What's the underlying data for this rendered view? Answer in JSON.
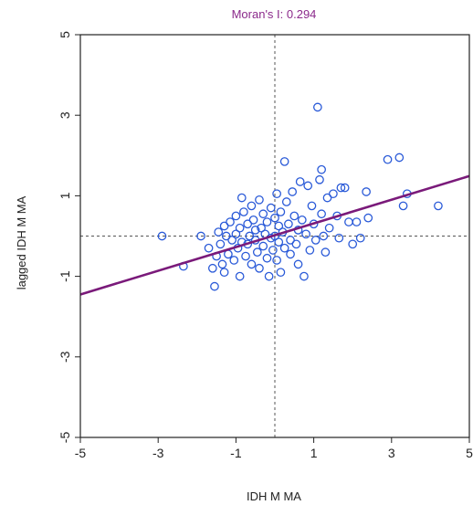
{
  "chart_data": {
    "type": "scatter",
    "title": "Moran's I: 0.294",
    "xlabel": "IDH M MA",
    "ylabel": "lagged IDH M MA",
    "xlim": [
      -5,
      5
    ],
    "ylim": [
      -5,
      5
    ],
    "xticks": [
      "-5",
      "-3",
      "-1",
      "1",
      "3",
      "5"
    ],
    "yticks": [
      "-5",
      "-3",
      "-1",
      "1",
      "3",
      "5"
    ],
    "grid": false,
    "mean_lines": {
      "x": 0,
      "y": 0
    },
    "regression_line": {
      "slope": 0.294,
      "intercept": 0.02
    },
    "colors": {
      "points": "#2a5ad8",
      "regression": "#7a1a7a",
      "title": "#8b2a8b",
      "mean_lines": "#555555"
    },
    "points": [
      [
        -2.9,
        0.0
      ],
      [
        -1.9,
        0.0
      ],
      [
        -1.7,
        -0.3
      ],
      [
        -1.6,
        -0.8
      ],
      [
        -1.55,
        -1.25
      ],
      [
        -1.5,
        -0.5
      ],
      [
        -1.45,
        0.1
      ],
      [
        -1.4,
        -0.2
      ],
      [
        -1.35,
        -0.7
      ],
      [
        -1.3,
        0.25
      ],
      [
        -1.3,
        -0.9
      ],
      [
        -1.25,
        0.0
      ],
      [
        -1.2,
        -0.45
      ],
      [
        -1.15,
        0.35
      ],
      [
        -1.1,
        -0.1
      ],
      [
        -1.05,
        -0.6
      ],
      [
        -1.0,
        0.5
      ],
      [
        -1.0,
        0.05
      ],
      [
        -0.95,
        -0.3
      ],
      [
        -0.9,
        -1.0
      ],
      [
        -0.9,
        0.2
      ],
      [
        -0.85,
        0.95
      ],
      [
        -0.85,
        -0.15
      ],
      [
        -0.8,
        0.6
      ],
      [
        -0.75,
        -0.5
      ],
      [
        -0.7,
        0.3
      ],
      [
        -0.7,
        -0.2
      ],
      [
        -0.65,
        0.0
      ],
      [
        -0.6,
        0.75
      ],
      [
        -0.6,
        -0.7
      ],
      [
        -0.55,
        0.4
      ],
      [
        -0.5,
        -0.1
      ],
      [
        -0.5,
        0.15
      ],
      [
        -0.45,
        -0.4
      ],
      [
        -0.4,
        0.9
      ],
      [
        -0.4,
        -0.8
      ],
      [
        -0.35,
        0.2
      ],
      [
        -0.3,
        0.55
      ],
      [
        -0.3,
        -0.25
      ],
      [
        -0.25,
        0.05
      ],
      [
        -0.2,
        -0.55
      ],
      [
        -0.2,
        0.35
      ],
      [
        -0.15,
        -1.0
      ],
      [
        -0.1,
        0.7
      ],
      [
        -0.1,
        -0.05
      ],
      [
        -0.05,
        -0.35
      ],
      [
        0.0,
        0.45
      ],
      [
        0.0,
        0.0
      ],
      [
        0.05,
        1.05
      ],
      [
        0.05,
        -0.6
      ],
      [
        0.1,
        0.25
      ],
      [
        0.1,
        -0.15
      ],
      [
        0.15,
        0.6
      ],
      [
        0.15,
        -0.9
      ],
      [
        0.2,
        0.1
      ],
      [
        0.25,
        1.85
      ],
      [
        0.25,
        -0.3
      ],
      [
        0.3,
        0.85
      ],
      [
        0.35,
        0.3
      ],
      [
        0.4,
        -0.1
      ],
      [
        0.4,
        -0.45
      ],
      [
        0.45,
        1.1
      ],
      [
        0.5,
        0.5
      ],
      [
        0.55,
        -0.2
      ],
      [
        0.6,
        0.15
      ],
      [
        0.6,
        -0.7
      ],
      [
        0.65,
        1.35
      ],
      [
        0.7,
        0.4
      ],
      [
        0.75,
        -1.0
      ],
      [
        0.8,
        0.05
      ],
      [
        0.85,
        1.25
      ],
      [
        0.9,
        -0.35
      ],
      [
        0.95,
        0.75
      ],
      [
        1.0,
        0.3
      ],
      [
        1.05,
        -0.1
      ],
      [
        1.1,
        3.2
      ],
      [
        1.15,
        1.4
      ],
      [
        1.2,
        0.55
      ],
      [
        1.2,
        1.65
      ],
      [
        1.25,
        0.0
      ],
      [
        1.3,
        -0.4
      ],
      [
        1.35,
        0.95
      ],
      [
        1.4,
        0.2
      ],
      [
        1.5,
        1.05
      ],
      [
        1.6,
        0.5
      ],
      [
        1.65,
        -0.05
      ],
      [
        1.7,
        1.2
      ],
      [
        1.8,
        1.2
      ],
      [
        1.9,
        0.35
      ],
      [
        2.0,
        -0.2
      ],
      [
        2.1,
        0.35
      ],
      [
        2.2,
        -0.05
      ],
      [
        2.35,
        1.1
      ],
      [
        2.4,
        0.45
      ],
      [
        2.9,
        1.9
      ],
      [
        3.2,
        1.95
      ],
      [
        3.3,
        0.75
      ],
      [
        3.4,
        1.05
      ],
      [
        4.2,
        0.75
      ],
      [
        -2.35,
        -0.75
      ]
    ]
  }
}
